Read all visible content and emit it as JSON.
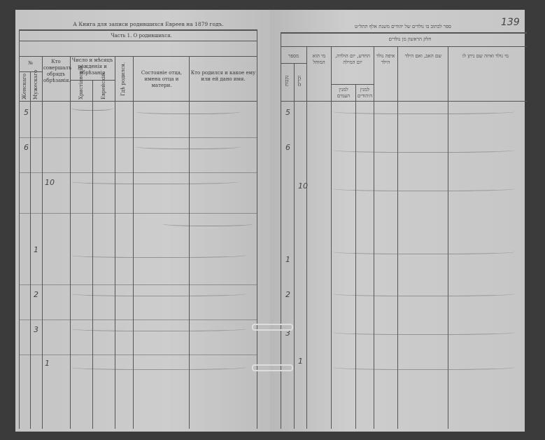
{
  "left_page": {
    "title": "А Книга для записи родившихся Евреев на 1879 годъ.",
    "section": "Часть 1. О родившихся.",
    "headers": {
      "number": "№",
      "male": "Мужескаго",
      "female": "Женскаго",
      "who_performed": "Кто совершалъ обрядъ обрѣзанія.",
      "date": "Число и мѣсяцъ рожденія и обрѣзанія",
      "christian": "Христіанскій.",
      "jewish": "Еврейскій.",
      "place": "Гдѣ родился.",
      "status": "Состояніе отца, имена отца и матери.",
      "child": "Кто родился и какое ему или ей дано имя."
    },
    "row_numbers": [
      "5",
      "6",
      "10",
      "1",
      "2",
      "3",
      "1"
    ]
  },
  "right_page": {
    "page_number": "139",
    "title": "ספר לכתוב בו נולדים של יהודים משנת אלף תתל״ט",
    "section": "חלק הראשון מן נולדים",
    "headers": {
      "number": "מספר",
      "male": "זכרים",
      "female": "נקבות",
      "mohel": "מי הוא המוהל",
      "date": "החדש, יום הולדה, יום המילה",
      "date_civil": "למנין העמים",
      "date_jewish": "למנין היהודים",
      "place": "איפה נולד הילד",
      "parents": "שם האב, ואם הילד",
      "child": "מי נולד ואיזה שם ניתן לו"
    },
    "row_numbers": [
      "5",
      "6",
      "10",
      "1",
      "2",
      "3",
      "1"
    ]
  }
}
